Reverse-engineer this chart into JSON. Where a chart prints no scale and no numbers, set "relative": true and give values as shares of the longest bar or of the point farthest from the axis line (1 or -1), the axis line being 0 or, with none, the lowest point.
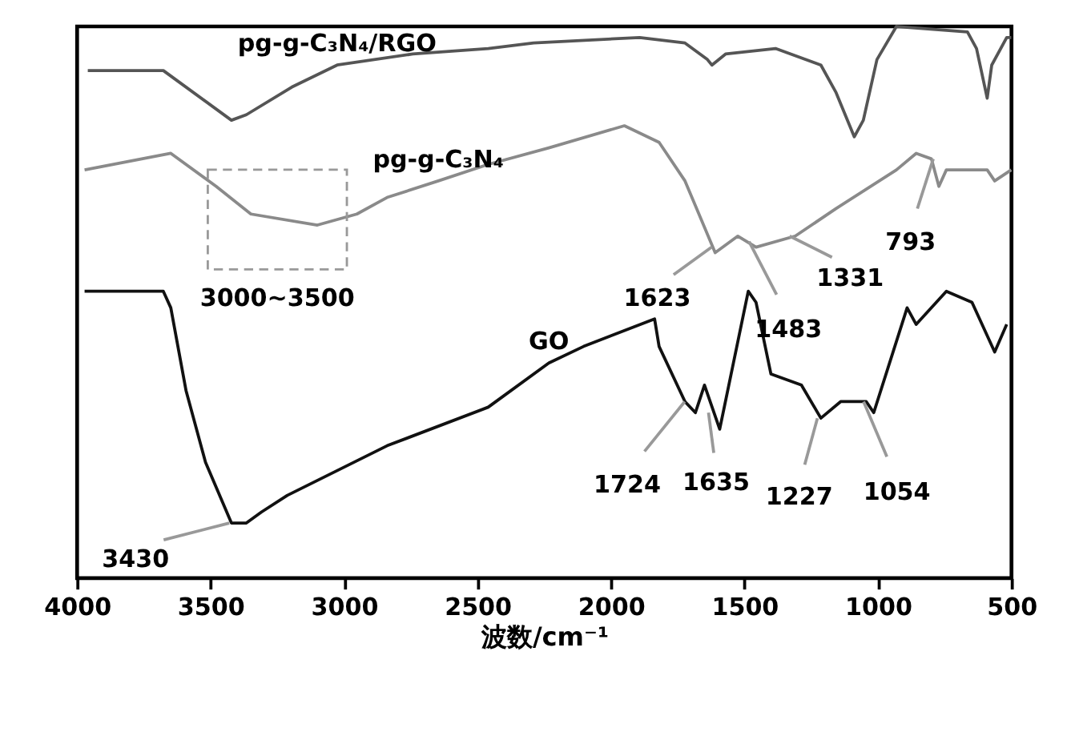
{
  "chart_data": {
    "type": "line",
    "relative": true,
    "xlabel": "波数/cm⁻¹",
    "xlim": [
      4000,
      500
    ],
    "xticks": [
      4000,
      3500,
      3000,
      2500,
      2000,
      1500,
      1000,
      500
    ],
    "grid": false,
    "tick_labels": "x",
    "line_style": "solid",
    "marker": "none",
    "series": [
      {
        "name": "pg-g-C₃N₄/RGO",
        "color": "#555555",
        "x": [
          3960,
          3677,
          3422,
          3366,
          3196,
          3026,
          2743,
          2460,
          2290,
          1893,
          1723,
          1639,
          1622,
          1571,
          1384,
          1214,
          1157,
          1089,
          1055,
          1004,
          931,
          665,
          631,
          591,
          574,
          518,
          501
        ],
        "values": [
          0.92,
          0.92,
          0.83,
          0.84,
          0.89,
          0.93,
          0.95,
          0.96,
          0.97,
          0.98,
          0.97,
          0.94,
          0.93,
          0.95,
          0.96,
          0.93,
          0.88,
          0.8,
          0.83,
          0.94,
          1.0,
          0.99,
          0.96,
          0.87,
          0.93,
          0.98,
          0.98
        ]
      },
      {
        "name": "pg-g-C₃N₄",
        "color": "#8a8a8a",
        "x": [
          3972,
          3649,
          3479,
          3349,
          3100,
          2952,
          2839,
          2647,
          2460,
          2233,
          1950,
          1820,
          1723,
          1610,
          1525,
          1457,
          1310,
          1157,
          931,
          857,
          800,
          772,
          744,
          591,
          563,
          501
        ],
        "values": [
          0.74,
          0.77,
          0.71,
          0.66,
          0.64,
          0.66,
          0.69,
          0.72,
          0.75,
          0.78,
          0.82,
          0.79,
          0.72,
          0.59,
          0.62,
          0.6,
          0.62,
          0.67,
          0.74,
          0.77,
          0.76,
          0.71,
          0.74,
          0.74,
          0.72,
          0.74
        ]
      },
      {
        "name": "GO",
        "color": "#111111",
        "x": [
          3972,
          3677,
          3649,
          3592,
          3519,
          3422,
          3366,
          3309,
          3213,
          2839,
          2460,
          2233,
          2103,
          1837,
          1820,
          1723,
          1684,
          1650,
          1593,
          1486,
          1457,
          1401,
          1287,
          1214,
          1140,
          1044,
          1016,
          891,
          857,
          744,
          648,
          563,
          518
        ],
        "values": [
          0.52,
          0.52,
          0.49,
          0.34,
          0.21,
          0.1,
          0.1,
          0.12,
          0.15,
          0.24,
          0.31,
          0.39,
          0.42,
          0.47,
          0.42,
          0.32,
          0.3,
          0.35,
          0.27,
          0.52,
          0.5,
          0.37,
          0.35,
          0.29,
          0.32,
          0.32,
          0.3,
          0.49,
          0.46,
          0.52,
          0.5,
          0.41,
          0.46
        ]
      }
    ],
    "annotations": [
      {
        "text": "3000~3500",
        "x": 3250,
        "y": 0.65
      },
      {
        "text": "3430",
        "x": 3430,
        "y": 0.1
      },
      {
        "text": "1623",
        "x": 1623,
        "y": 0.6
      },
      {
        "text": "1483",
        "x": 1483,
        "y": 0.61
      },
      {
        "text": "1331",
        "x": 1331,
        "y": 0.62
      },
      {
        "text": "793",
        "x": 793,
        "y": 0.76
      },
      {
        "text": "1724",
        "x": 1724,
        "y": 0.32
      },
      {
        "text": "1635",
        "x": 1635,
        "y": 0.3
      },
      {
        "text": "1227",
        "x": 1227,
        "y": 0.29
      },
      {
        "text": "1054",
        "x": 1054,
        "y": 0.32
      }
    ]
  }
}
